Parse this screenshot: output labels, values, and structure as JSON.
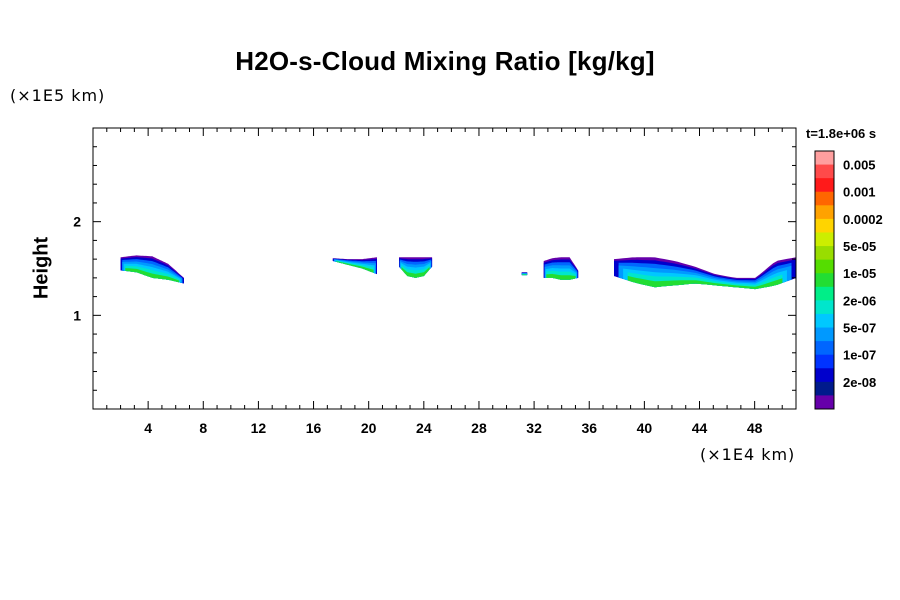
{
  "chart_data": {
    "type": "contour",
    "title": "H2O-s-Cloud Mixing Ratio [kg/kg]",
    "ylabel": "Height",
    "x_unit_label": "(×1E4 km)",
    "y_unit_label": "(×1E5 km)",
    "xlim": [
      0,
      51
    ],
    "ylim": [
      0,
      3
    ],
    "x_ticks": [
      4,
      8,
      12,
      16,
      20,
      24,
      28,
      32,
      36,
      40,
      44,
      48
    ],
    "y_ticks": [
      1,
      2
    ],
    "legend": {
      "title": "t=1.8e+06 s",
      "placement": "right",
      "levels": [
        "0.005",
        "0.001",
        "0.0002",
        "5e-05",
        "1e-05",
        "2e-06",
        "5e-07",
        "1e-07",
        "2e-08"
      ],
      "colors": [
        "#ff9f9f",
        "#ff4a4a",
        "#ff1a1a",
        "#ff6600",
        "#ffa200",
        "#ffd400",
        "#ccee00",
        "#99dd00",
        "#55dd00",
        "#22dd33",
        "#00ee88",
        "#00e6cc",
        "#00c8ff",
        "#0099ff",
        "#0066ff",
        "#0033ff",
        "#0000cc",
        "#001a8c",
        "#6600aa"
      ]
    },
    "regions": [
      {
        "x": [
          2.0,
          6.6
        ],
        "y_bottom": [
          1.48,
          1.46,
          1.4,
          1.38,
          1.34
        ],
        "y_top": [
          1.62,
          1.64,
          1.63,
          1.55,
          1.4
        ]
      },
      {
        "x": [
          17.4,
          20.6
        ],
        "y_bottom": [
          1.58,
          1.54,
          1.5,
          1.44
        ],
        "y_top": [
          1.61,
          1.6,
          1.6,
          1.62
        ]
      },
      {
        "x": [
          22.2,
          24.6
        ],
        "y_bottom": [
          1.52,
          1.42,
          1.4,
          1.42,
          1.52
        ],
        "y_top": [
          1.62,
          1.62,
          1.62,
          1.62,
          1.62
        ]
      },
      {
        "x": [
          31.1,
          31.5
        ],
        "y_bottom": [
          1.43
        ],
        "y_top": [
          1.46
        ]
      },
      {
        "x": [
          32.7,
          35.2
        ],
        "y_bottom": [
          1.4,
          1.4,
          1.38,
          1.38,
          1.4
        ],
        "y_top": [
          1.58,
          1.61,
          1.62,
          1.62,
          1.48
        ]
      },
      {
        "x": [
          37.8,
          51.0
        ],
        "y_bottom": [
          1.42,
          1.35,
          1.3,
          1.32,
          1.34,
          1.32,
          1.3,
          1.28,
          1.32,
          1.4
        ],
        "y_top": [
          1.6,
          1.62,
          1.62,
          1.58,
          1.52,
          1.44,
          1.4,
          1.4,
          1.58,
          1.62
        ]
      }
    ]
  }
}
